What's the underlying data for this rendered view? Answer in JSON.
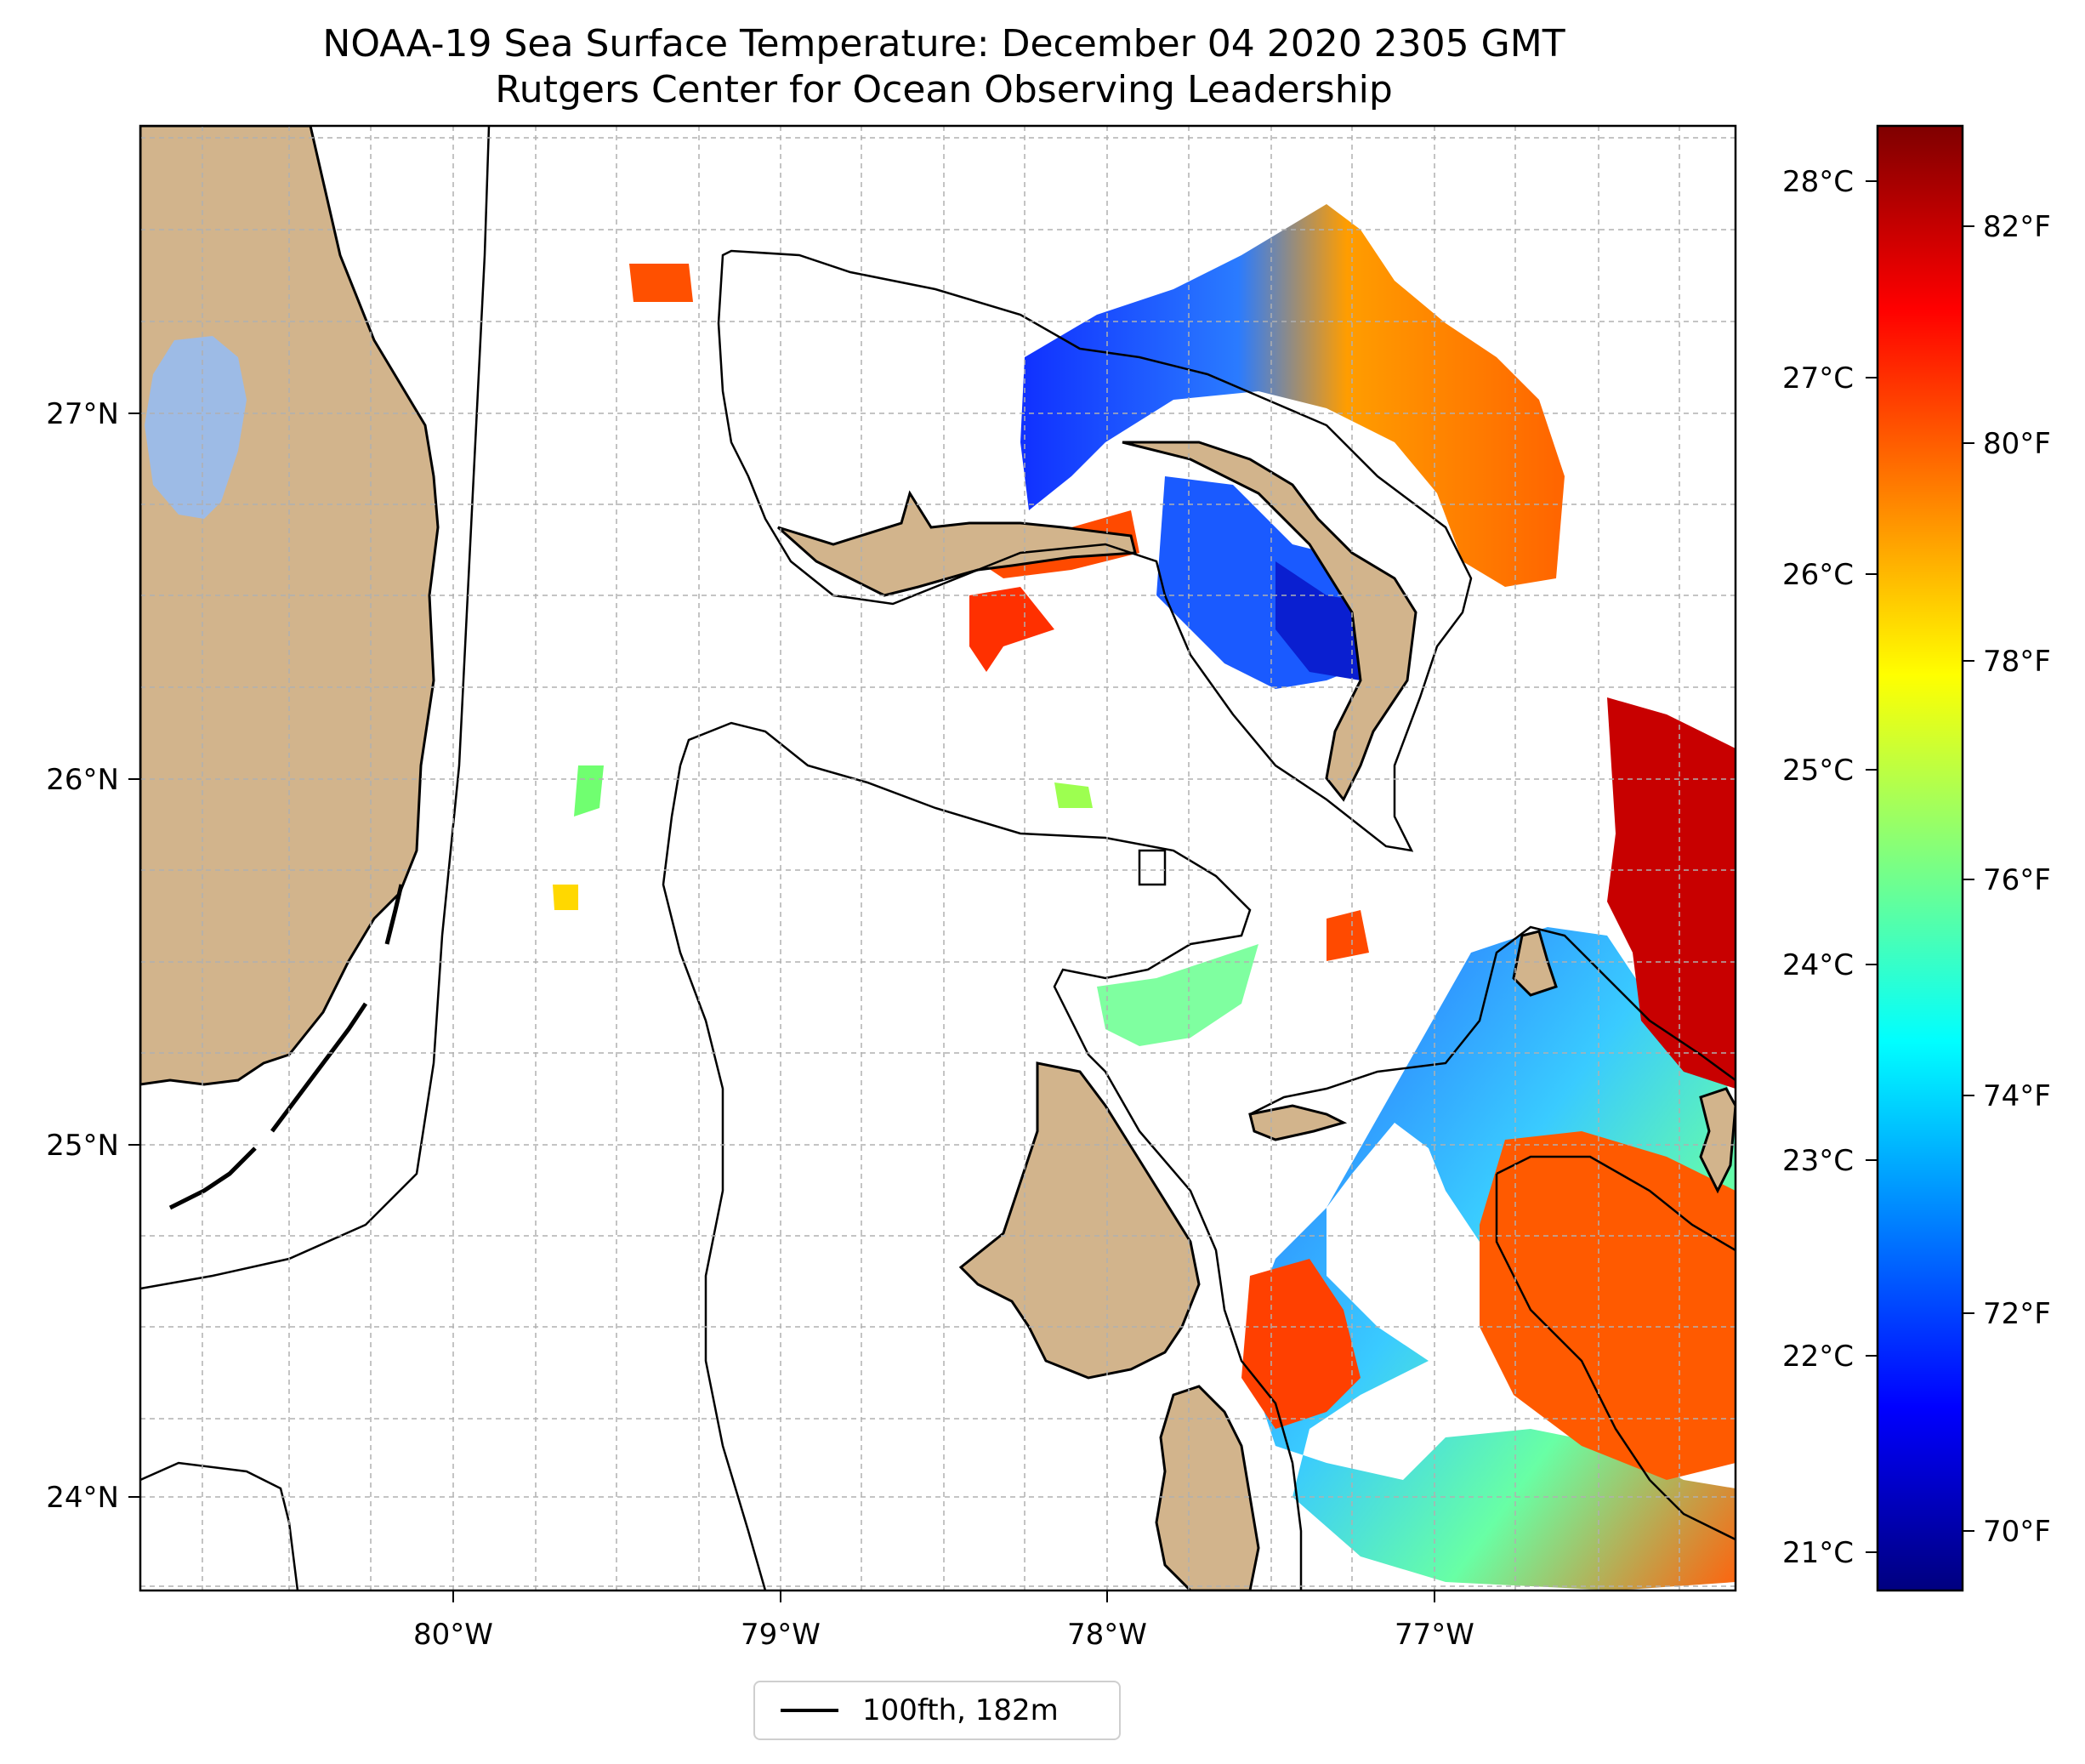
{
  "title": {
    "line1": "NOAA-19 Sea Surface Temperature: December 04 2020 2305 GMT",
    "line2": "Rutgers Center for Ocean Observing Leadership"
  },
  "map": {
    "lon_labels": [
      "80°W",
      "79°W",
      "78°W",
      "77°W"
    ],
    "lat_labels": [
      "27°N",
      "26°N",
      "25°N",
      "24°N"
    ]
  },
  "colorbar": {
    "celsius_labels": [
      "28°C",
      "27°C",
      "26°C",
      "25°C",
      "24°C",
      "23°C",
      "22°C",
      "21°C"
    ],
    "fahrenheit_labels": [
      "82°F",
      "80°F",
      "78°F",
      "76°F",
      "74°F",
      "72°F",
      "70°F"
    ],
    "colors": [
      "#00007f",
      "#0000ff",
      "#007fff",
      "#00ffff",
      "#7fff7f",
      "#ffff00",
      "#ff7f00",
      "#ff0000",
      "#7f0000"
    ]
  },
  "legend": {
    "label": "100fth, 182m"
  },
  "colors": {
    "land": "#d2b48c",
    "lake": "#9dbbe6",
    "grid": "#b0b0b0"
  }
}
